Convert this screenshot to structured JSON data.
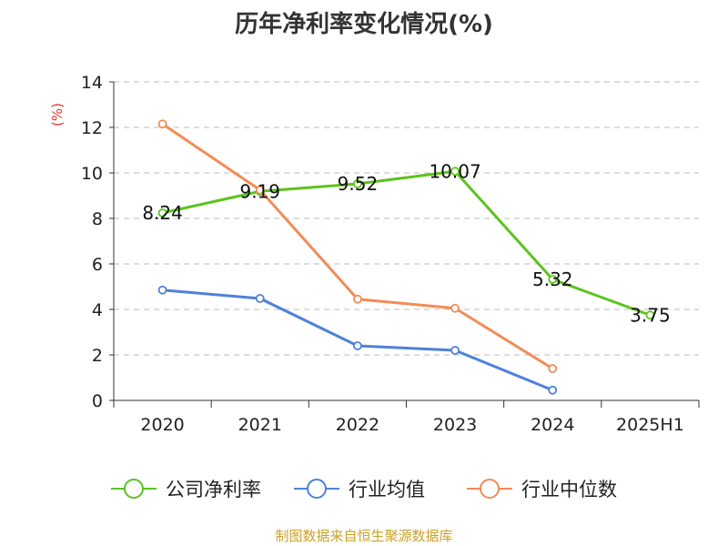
{
  "chart_data": {
    "type": "line",
    "title": "历年净利率变化情况(%)",
    "ylabel": "(%)",
    "xlabel": "",
    "categories": [
      "2020",
      "2021",
      "2022",
      "2023",
      "2024",
      "2025H1"
    ],
    "ylim": [
      0,
      14
    ],
    "yticks": [
      0,
      2,
      4,
      6,
      8,
      10,
      12,
      14
    ],
    "grid": true,
    "legend_position": "bottom",
    "series": [
      {
        "name": "公司净利率",
        "color": "#5cc31e",
        "values": [
          8.24,
          9.19,
          9.52,
          10.07,
          5.32,
          3.75
        ],
        "labels": [
          "8.24",
          "9.19",
          "9.52",
          "10.07",
          "5.32",
          "3.75"
        ]
      },
      {
        "name": "行业均值",
        "color": "#4f81d9",
        "values": [
          4.85,
          4.48,
          2.4,
          2.2,
          0.45,
          null
        ]
      },
      {
        "name": "行业中位数",
        "color": "#f28c57",
        "values": [
          12.15,
          9.25,
          4.45,
          4.05,
          1.4,
          null
        ]
      }
    ]
  },
  "footer": {
    "source": "制图数据来自恒生聚源数据库"
  }
}
